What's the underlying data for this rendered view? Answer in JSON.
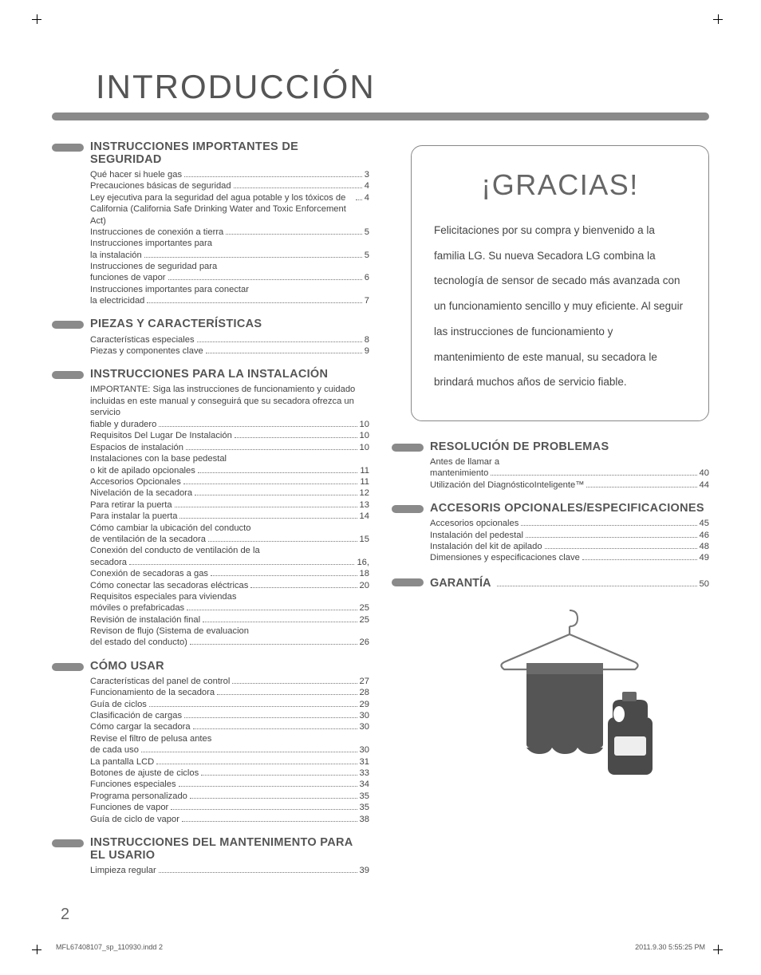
{
  "colors": {
    "accent": "#8a8a8a",
    "text": "#444444",
    "heading": "#555555"
  },
  "title": "INTRODUCCIÓN",
  "page_number": "2",
  "footer": {
    "left": "MFL67408107_sp_110930.indd   2",
    "right": "2011.9.30   5:55:25 PM"
  },
  "left_sections": [
    {
      "heading": "INSTRUCCIONES IMPORTANTES DE SEGURIDAD",
      "items": [
        {
          "label": "Qué hacer si huele gas",
          "page": "3"
        },
        {
          "label": "Precauciones básicas de seguridad",
          "page": "4"
        },
        {
          "label": "Ley ejecutiva para la seguridad del agua potable y los tóxicos de California (California Safe Drinking Water and Toxic Enforcement Act)",
          "page": "4"
        },
        {
          "label": "Instrucciones de conexión a tierra",
          "page": "5"
        },
        {
          "label": "Instrucciones importantes para",
          "cont": true
        },
        {
          "label": "la instalación",
          "page": "5"
        },
        {
          "label": "Instrucciones de seguridad para",
          "cont": true
        },
        {
          "label": "funciones de vapor",
          "page": "6"
        },
        {
          "label": "Instrucciones importantes para conectar",
          "cont": true
        },
        {
          "label": "la electricidad",
          "page": "7"
        }
      ]
    },
    {
      "heading": "PIEZAS Y CARACTERÍSTICAS",
      "items": [
        {
          "label": "Características especiales",
          "page": "8"
        },
        {
          "label": "Piezas y componentes clave",
          "page": "9"
        }
      ]
    },
    {
      "heading": "INSTRUCCIONES PARA LA INSTALACIÓN",
      "intro": "IMPORTANTE: Siga las instrucciones de funcionamiento y cuidado incluidas en este manual y conseguirá que su secadora ofrezca un servicio",
      "items": [
        {
          "label": "fiable y duradero",
          "page": "10"
        },
        {
          "label": "Requisitos Del Lugar De Instalación",
          "page": "10"
        },
        {
          "label": "Espacios de instalación",
          "page": "10"
        },
        {
          "label": "Instalaciones con la base pedestal",
          "cont": true
        },
        {
          "label": "o kit de apilado opcionales",
          "page": "11"
        },
        {
          "label": "Accesorios Opcionales",
          "page": "11"
        },
        {
          "label": "Nivelación de la secadora",
          "page": "12"
        },
        {
          "label": "Para retirar la puerta",
          "page": "13"
        },
        {
          "label": "Para instalar la puerta",
          "page": "14"
        },
        {
          "label": "Cómo cambiar la ubicación del conducto",
          "cont": true
        },
        {
          "label": "de ventilación de la secadora",
          "page": "15"
        },
        {
          "label": "Conexión del conducto de ventilación de la",
          "cont": true
        },
        {
          "label": "secadora",
          "page": "16,"
        },
        {
          "label": "Conexión de secadoras a gas",
          "page": "18"
        },
        {
          "label": "Cómo conectar las secadoras eléctricas",
          "page": "20"
        },
        {
          "label": "Requisitos especiales para viviendas",
          "cont": true
        },
        {
          "label": "móviles o prefabricadas",
          "page": "25"
        },
        {
          "label": "Revisión de instalación final",
          "page": "25"
        },
        {
          "label": "Revison de flujo (Sistema de evaluacion",
          "cont": true
        },
        {
          "label": "del estado del conducto)",
          "page": "26"
        }
      ]
    },
    {
      "heading": "CÓMO USAR",
      "items": [
        {
          "label": "Características del panel de control",
          "page": "27"
        },
        {
          "label": "Funcionamiento de la secadora",
          "page": "28"
        },
        {
          "label": "Guía de ciclos",
          "page": "29"
        },
        {
          "label": "Clasificación de cargas",
          "page": "30"
        },
        {
          "label": "Cómo cargar la secadora",
          "page": "30"
        },
        {
          "label": "Revise el filtro de pelusa antes",
          "cont": true
        },
        {
          "label": "de cada uso",
          "page": "30"
        },
        {
          "label": "La pantalla LCD",
          "page": "31"
        },
        {
          "label": "Botones de ajuste de ciclos",
          "page": "33"
        },
        {
          "label": "Funciones especiales",
          "page": "34"
        },
        {
          "label": "Programa personalizado",
          "page": "35"
        },
        {
          "label": "Funciones de vapor",
          "page": "35"
        },
        {
          "label": "Guía de ciclo de vapor",
          "page": "38"
        }
      ]
    },
    {
      "heading": "INSTRUCCIONES DEL MANTENIMENTO PARA EL USARIO",
      "items": [
        {
          "label": "Limpieza regular",
          "page": "39"
        }
      ]
    }
  ],
  "right_sections": [
    {
      "heading": "RESOLUCIÓN DE PROBLEMAS",
      "items": [
        {
          "label": "Antes de llamar a",
          "cont": true
        },
        {
          "label": "mantenimiento",
          "page": "40"
        },
        {
          "label": "Utilización del DiagnósticoInteligente™",
          "page": "44"
        }
      ]
    },
    {
      "heading": "ACCESORIS OPCIONALES/ESPECIFICACIONES",
      "items": [
        {
          "label": "Accesorios opcionales",
          "page": "45"
        },
        {
          "label": "Instalación del pedestal",
          "page": "46"
        },
        {
          "label": "Instalación del kit de apilado",
          "page": "48"
        },
        {
          "label": "Dimensiones y especificaciones clave",
          "page": "49"
        }
      ]
    }
  ],
  "garantia": {
    "heading": "GARANTÍA",
    "page": "50"
  },
  "thanks": {
    "title": "¡GRACIAS!",
    "body": "Felicitaciones por su compra y bienvenido a la familia LG. Su nueva Secadora LG combina la tecnología de sensor de secado más avanzada con un funcionamiento sencillo y muy eficiente. Al seguir las instrucciones de funcionamiento y mantenimiento de este manual, su secadora le brindará muchos años de servicio fiable."
  }
}
